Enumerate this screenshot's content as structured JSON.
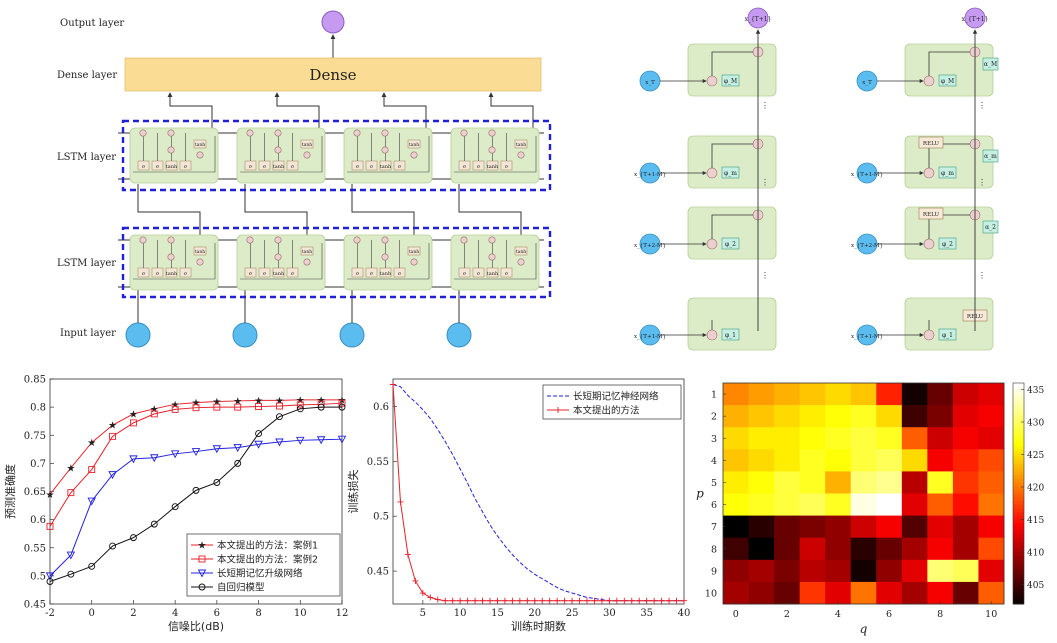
{
  "diagram": {
    "layers": {
      "output": "Output layer",
      "dense_layer": "Dense layer",
      "lstm1": "LSTM layer",
      "lstm2": "LSTM layer",
      "input": "Input layer"
    },
    "dense_box": "Dense",
    "colors": {
      "cell_fill": "#dcecc8",
      "dense_fill": "#fbdc94",
      "node_blue": "#5bbcf0",
      "node_purple": "#c79af2",
      "dash_blue": "#2020d8",
      "gate_fill": "#f3e6d6",
      "op_fill": "#eccfcf",
      "phi_fill": "#c6efe4"
    },
    "chain_a": {
      "top_node": "x_{T+1}",
      "inputs": [
        "x_T",
        "x_{T+1-M}",
        "x_{T+2-M}",
        "x_{T+1-M}"
      ],
      "phis": [
        "φ_M",
        "φ_m",
        "φ_2",
        "φ_1"
      ]
    },
    "chain_b": {
      "top_node": "x_{T+1}",
      "inputs": [
        "x_T",
        "x_{T+1-M}",
        "x_{T+2-M}",
        "x_{T+1-M}"
      ],
      "phis": [
        "φ_M",
        "φ_m",
        "φ_2",
        "φ_1"
      ],
      "alphas": [
        "α_M",
        "α_m",
        "α_2"
      ],
      "relu": "RELU"
    },
    "gate_labels": [
      "σ",
      "σ",
      "tanh",
      "σ",
      "tanh"
    ]
  },
  "chart_data": [
    {
      "type": "line",
      "xlabel": "信噪比(dB)",
      "ylabel": "预测准确度",
      "xlim": [
        -2,
        12
      ],
      "ylim": [
        0.45,
        0.85
      ],
      "xticks": [
        "-2",
        "0",
        "2",
        "4",
        "6",
        "8",
        "10",
        "12"
      ],
      "yticks": [
        "0.45",
        "0.5",
        "0.55",
        "0.6",
        "0.65",
        "0.7",
        "0.75",
        "0.8",
        "0.85"
      ],
      "x": [
        -2,
        -1,
        0,
        1,
        2,
        3,
        4,
        5,
        6,
        7,
        8,
        9,
        10,
        11,
        12
      ],
      "series": [
        {
          "name": "本文提出的方法：案例1",
          "color": "#e8202a",
          "marker": "star",
          "values": [
            0.645,
            0.692,
            0.737,
            0.768,
            0.788,
            0.797,
            0.805,
            0.808,
            0.81,
            0.811,
            0.812,
            0.812,
            0.813,
            0.813,
            0.813
          ]
        },
        {
          "name": "本文提出的方法：案例2",
          "color": "#e8202a",
          "marker": "square",
          "values": [
            0.588,
            0.648,
            0.689,
            0.748,
            0.772,
            0.788,
            0.796,
            0.799,
            0.8,
            0.8,
            0.801,
            0.802,
            0.804,
            0.805,
            0.807
          ]
        },
        {
          "name": "长短期记忆升级网络",
          "color": "#2222e0",
          "marker": "triangle",
          "values": [
            0.5,
            0.537,
            0.633,
            0.68,
            0.708,
            0.71,
            0.717,
            0.721,
            0.726,
            0.728,
            0.734,
            0.738,
            0.741,
            0.742,
            0.743
          ]
        },
        {
          "name": "自回归模型",
          "color": "#111111",
          "marker": "circle",
          "values": [
            0.49,
            0.503,
            0.517,
            0.553,
            0.568,
            0.592,
            0.623,
            0.652,
            0.666,
            0.7,
            0.753,
            0.783,
            0.797,
            0.8,
            0.8
          ]
        }
      ],
      "legend": "bottom-right",
      "grid": false
    },
    {
      "type": "line",
      "xlabel": "训练时期数",
      "ylabel": "训练损失",
      "xlim": [
        1,
        40
      ],
      "ylim": [
        0.42,
        0.625
      ],
      "xticks": [
        "5",
        "10",
        "15",
        "20",
        "25",
        "30",
        "35",
        "40"
      ],
      "yticks": [
        "0.45",
        "0.5",
        "0.55",
        "0.6"
      ],
      "x": [
        1,
        2,
        3,
        4,
        5,
        6,
        7,
        8,
        9,
        10,
        11,
        12,
        13,
        14,
        15,
        16,
        17,
        18,
        19,
        20,
        21,
        22,
        23,
        24,
        25,
        26,
        27,
        28,
        29,
        30,
        31,
        32,
        33,
        34,
        35,
        36,
        37,
        38,
        39,
        40
      ],
      "series": [
        {
          "name": "长短期记忆神经网络",
          "color": "#2222e0",
          "style": "dashed",
          "values": [
            0.62,
            0.618,
            0.61,
            0.604,
            0.597,
            0.589,
            0.579,
            0.568,
            0.556,
            0.543,
            0.53,
            0.516,
            0.504,
            0.492,
            0.482,
            0.473,
            0.465,
            0.458,
            0.452,
            0.447,
            0.443,
            0.439,
            0.435,
            0.432,
            0.43,
            0.428,
            0.426,
            0.425,
            0.424,
            0.423,
            0.423,
            0.423,
            0.423,
            0.423,
            0.423,
            0.423,
            0.423,
            0.423,
            0.423,
            0.423
          ]
        },
        {
          "name": "本文提出的方法",
          "color": "#e8202a",
          "marker": "plus",
          "values": [
            0.62,
            0.513,
            0.465,
            0.441,
            0.43,
            0.426,
            0.424,
            0.423,
            0.423,
            0.423,
            0.423,
            0.423,
            0.423,
            0.423,
            0.423,
            0.423,
            0.423,
            0.423,
            0.423,
            0.423,
            0.423,
            0.423,
            0.423,
            0.423,
            0.423,
            0.423,
            0.423,
            0.423,
            0.423,
            0.423,
            0.423,
            0.423,
            0.423,
            0.423,
            0.423,
            0.423,
            0.423,
            0.423,
            0.423,
            0.423
          ]
        }
      ],
      "legend": "top-right",
      "grid": false
    },
    {
      "type": "heatmap",
      "xlabel": "q",
      "ylabel": "p",
      "xticks": [
        "0",
        "2",
        "4",
        "6",
        "8",
        "10"
      ],
      "yticks": [
        "1",
        "2",
        "3",
        "4",
        "5",
        "6",
        "7",
        "8",
        "9",
        "10"
      ],
      "colorbar_ticks": [
        "405",
        "410",
        "415",
        "420",
        "425",
        "430",
        "435"
      ],
      "vmin": 402,
      "vmax": 436,
      "x": [
        0,
        1,
        2,
        3,
        4,
        5,
        6,
        7,
        8,
        9,
        10
      ],
      "y": [
        1,
        2,
        3,
        4,
        5,
        6,
        7,
        8,
        9,
        10
      ],
      "z": [
        [
          421,
          422,
          423,
          424,
          425,
          424,
          416,
          403,
          407,
          412,
          413
        ],
        [
          423,
          424,
          425,
          426,
          427,
          428,
          425,
          405,
          408,
          413,
          414
        ],
        [
          425,
          426,
          426,
          427,
          428,
          429,
          428,
          419,
          412,
          414,
          413
        ],
        [
          424,
          425,
          426,
          428,
          427,
          429,
          430,
          425,
          414,
          416,
          418
        ],
        [
          426,
          427,
          429,
          428,
          423,
          431,
          432,
          411,
          428,
          417,
          419
        ],
        [
          427,
          428,
          429,
          430,
          428,
          435,
          436,
          413,
          419,
          415,
          420
        ],
        [
          402,
          404,
          407,
          408,
          409,
          412,
          414,
          406,
          413,
          410,
          414
        ],
        [
          405,
          402,
          407,
          412,
          409,
          404,
          407,
          410,
          414,
          410,
          418
        ],
        [
          409,
          410,
          408,
          411,
          410,
          403,
          409,
          413,
          431,
          430,
          413
        ],
        [
          410,
          409,
          407,
          417,
          413,
          420,
          413,
          410,
          414,
          407,
          419
        ]
      ]
    }
  ]
}
